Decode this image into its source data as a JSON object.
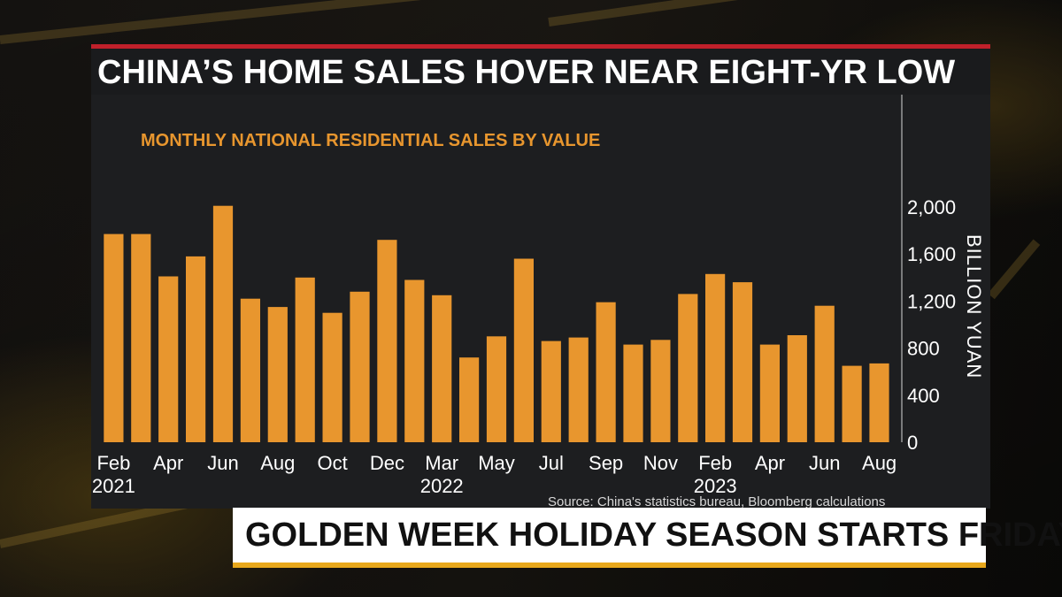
{
  "header": {
    "title": "CHINA’S HOME SALES HOVER NEAR EIGHT-YR LOW"
  },
  "lower_third": {
    "headline": "GOLDEN WEEK HOLIDAY SEASON STARTS FRIDAY"
  },
  "colors": {
    "bar": "#e8962e",
    "title_accent": "#c0202a",
    "lower_third_accent": "#e8a81c",
    "panel": "#1d1e20"
  },
  "chart_data": {
    "type": "bar",
    "subtitle": "MONTHLY NATIONAL RESIDENTIAL SALES BY VALUE",
    "ylabel": "BILLION YUAN",
    "ylim": [
      0,
      2000
    ],
    "yticks": [
      "2,000",
      "1,600",
      "1,200",
      "800",
      "400",
      "0"
    ],
    "ytick_values": [
      2000,
      1600,
      1200,
      800,
      400,
      0
    ],
    "y_axis_position": "right",
    "grid": false,
    "categories": [
      "2021-02",
      "2021-03",
      "2021-04",
      "2021-05",
      "2021-06",
      "2021-07",
      "2021-08",
      "2021-09",
      "2021-10",
      "2021-11",
      "2021-12",
      "2022-02",
      "2022-03",
      "2022-04",
      "2022-05",
      "2022-06",
      "2022-07",
      "2022-08",
      "2022-09",
      "2022-10",
      "2022-11",
      "2022-12",
      "2023-02",
      "2023-03",
      "2023-04",
      "2023-05",
      "2023-06",
      "2023-07",
      "2023-08"
    ],
    "values": [
      1770,
      1770,
      1410,
      1580,
      2010,
      1220,
      1150,
      1400,
      1100,
      1280,
      1720,
      1380,
      1250,
      720,
      900,
      1560,
      860,
      890,
      1190,
      830,
      870,
      1260,
      1430,
      1360,
      830,
      910,
      1160,
      650,
      670
    ],
    "xtick_labels": [
      {
        "index": 0,
        "month": "Feb",
        "year": "2021"
      },
      {
        "index": 2,
        "month": "Apr",
        "year": ""
      },
      {
        "index": 4,
        "month": "Jun",
        "year": ""
      },
      {
        "index": 6,
        "month": "Aug",
        "year": ""
      },
      {
        "index": 8,
        "month": "Oct",
        "year": ""
      },
      {
        "index": 10,
        "month": "Dec",
        "year": ""
      },
      {
        "index": 12,
        "month": "Mar",
        "year": "2022"
      },
      {
        "index": 14,
        "month": "May",
        "year": ""
      },
      {
        "index": 16,
        "month": "Jul",
        "year": ""
      },
      {
        "index": 18,
        "month": "Sep",
        "year": ""
      },
      {
        "index": 20,
        "month": "Nov",
        "year": ""
      },
      {
        "index": 22,
        "month": "Feb",
        "year": "2023"
      },
      {
        "index": 24,
        "month": "Apr",
        "year": ""
      },
      {
        "index": 26,
        "month": "Jun",
        "year": ""
      },
      {
        "index": 28,
        "month": "Aug",
        "year": ""
      }
    ],
    "source": "Source: China's statistics bureau, Bloomberg calculations"
  }
}
